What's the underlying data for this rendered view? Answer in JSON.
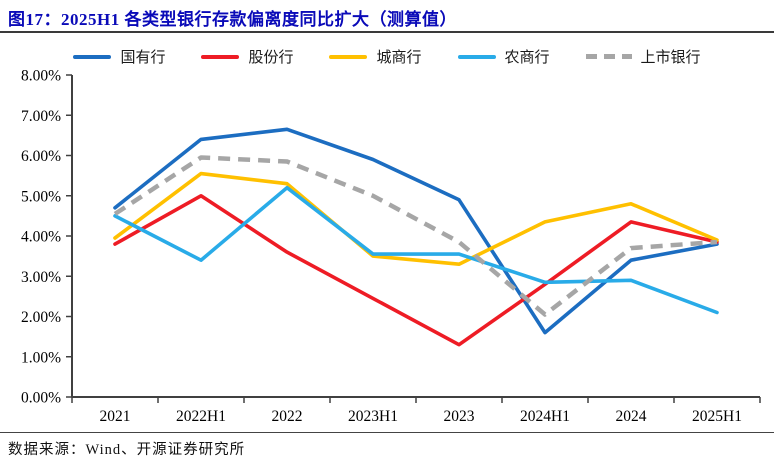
{
  "figure": {
    "title": "图17：2025H1 各类型银行存款偏离度同比扩大（测算值）",
    "title_color": "#0a0ab8",
    "source": "数据来源：Wind、开源证券研究所"
  },
  "chart_data": {
    "type": "line",
    "title": "各类型银行存款偏离度（测算值）",
    "xlabel": "",
    "ylabel": "",
    "categories": [
      "2021",
      "2022H1",
      "2022",
      "2023H1",
      "2023",
      "2024H1",
      "2024",
      "2025H1"
    ],
    "series": [
      {
        "name": "国有行",
        "color": "#1C6DC1",
        "style": "solid",
        "values": [
          4.7,
          6.4,
          6.65,
          5.9,
          4.9,
          1.6,
          3.4,
          3.8
        ]
      },
      {
        "name": "股份行",
        "color": "#EE1C25",
        "style": "solid",
        "values": [
          3.8,
          5.0,
          3.6,
          2.45,
          1.3,
          2.8,
          4.35,
          3.85
        ]
      },
      {
        "name": "城商行",
        "color": "#FFC000",
        "style": "solid",
        "values": [
          3.95,
          5.55,
          5.3,
          3.5,
          3.3,
          4.35,
          4.8,
          3.9
        ]
      },
      {
        "name": "农商行",
        "color": "#29ABE8",
        "style": "solid",
        "values": [
          4.5,
          3.4,
          5.2,
          3.55,
          3.55,
          2.85,
          2.9,
          2.1
        ]
      },
      {
        "name": "上市银行",
        "color": "#A6A6A6",
        "style": "dashed",
        "values": [
          4.55,
          5.95,
          5.85,
          5.0,
          3.85,
          2.05,
          3.7,
          3.85
        ]
      }
    ],
    "y_ticks": [
      "0.00%",
      "1.00%",
      "2.00%",
      "3.00%",
      "4.00%",
      "5.00%",
      "6.00%",
      "7.00%",
      "8.00%"
    ],
    "ylim": [
      0,
      8
    ],
    "grid": false,
    "legend_position": "top",
    "axis_color": "#404040"
  }
}
